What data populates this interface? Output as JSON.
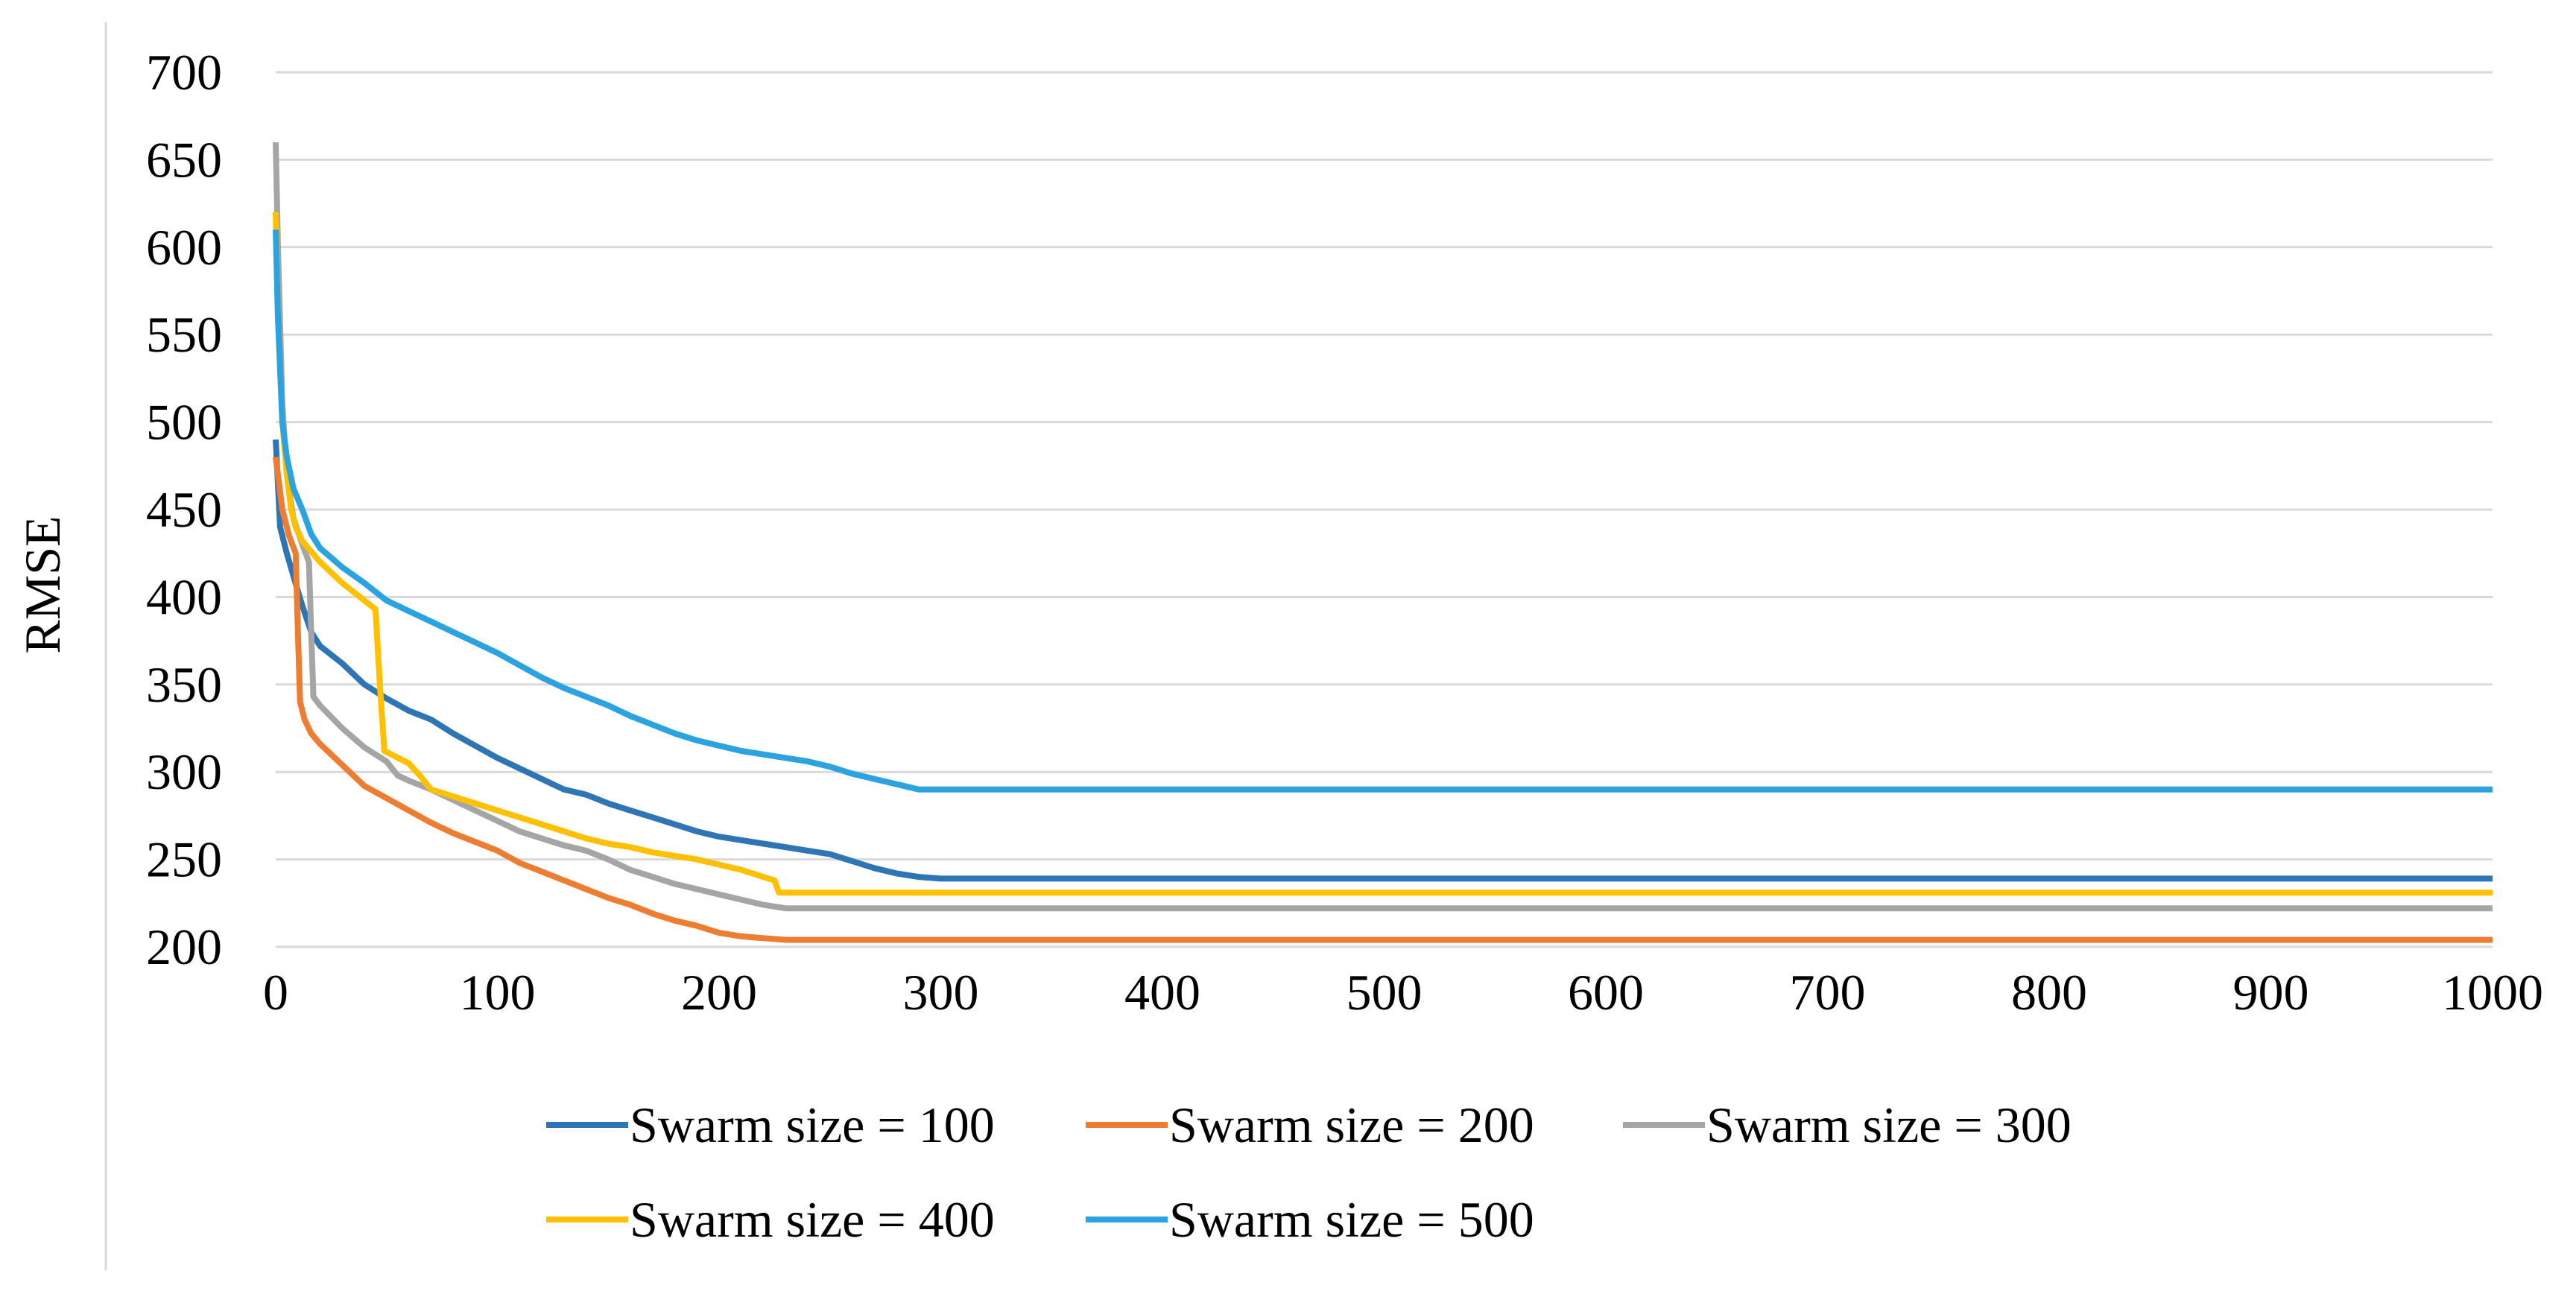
{
  "chart_data": {
    "type": "line",
    "title": "",
    "xlabel": "",
    "ylabel": "RMSE",
    "xlim": [
      0,
      1000
    ],
    "ylim": [
      200,
      700
    ],
    "x_ticks": [
      0,
      100,
      200,
      300,
      400,
      500,
      600,
      700,
      800,
      900,
      1000
    ],
    "y_ticks": [
      200,
      250,
      300,
      350,
      400,
      450,
      500,
      550,
      600,
      650,
      700
    ],
    "grid": true,
    "legend_position": "bottom",
    "series": [
      {
        "name": "Swarm size = 100",
        "color": "#2e75b6",
        "points": [
          [
            0,
            490
          ],
          [
            2,
            440
          ],
          [
            5,
            425
          ],
          [
            8,
            412
          ],
          [
            12,
            395
          ],
          [
            16,
            380
          ],
          [
            20,
            372
          ],
          [
            30,
            362
          ],
          [
            40,
            350
          ],
          [
            50,
            342
          ],
          [
            60,
            335
          ],
          [
            70,
            330
          ],
          [
            80,
            322
          ],
          [
            90,
            315
          ],
          [
            100,
            308
          ],
          [
            110,
            302
          ],
          [
            120,
            296
          ],
          [
            130,
            290
          ],
          [
            140,
            287
          ],
          [
            150,
            282
          ],
          [
            160,
            278
          ],
          [
            170,
            274
          ],
          [
            180,
            270
          ],
          [
            190,
            266
          ],
          [
            200,
            263
          ],
          [
            210,
            261
          ],
          [
            220,
            259
          ],
          [
            230,
            257
          ],
          [
            240,
            255
          ],
          [
            250,
            253
          ],
          [
            260,
            249
          ],
          [
            270,
            245
          ],
          [
            280,
            242
          ],
          [
            290,
            240
          ],
          [
            300,
            239
          ],
          [
            1000,
            239
          ]
        ]
      },
      {
        "name": "Swarm size = 200",
        "color": "#ed7d31",
        "points": [
          [
            0,
            480
          ],
          [
            3,
            450
          ],
          [
            6,
            435
          ],
          [
            9,
            425
          ],
          [
            10,
            380
          ],
          [
            11,
            340
          ],
          [
            13,
            330
          ],
          [
            16,
            322
          ],
          [
            20,
            316
          ],
          [
            30,
            304
          ],
          [
            40,
            292
          ],
          [
            50,
            285
          ],
          [
            60,
            278
          ],
          [
            70,
            271
          ],
          [
            80,
            265
          ],
          [
            90,
            260
          ],
          [
            100,
            255
          ],
          [
            110,
            248
          ],
          [
            120,
            243
          ],
          [
            130,
            238
          ],
          [
            140,
            233
          ],
          [
            150,
            228
          ],
          [
            160,
            224
          ],
          [
            170,
            219
          ],
          [
            180,
            215
          ],
          [
            190,
            212
          ],
          [
            200,
            208
          ],
          [
            210,
            206
          ],
          [
            220,
            205
          ],
          [
            230,
            204
          ],
          [
            1000,
            204
          ]
        ]
      },
      {
        "name": "Swarm size = 300",
        "color": "#a5a5a5",
        "points": [
          [
            0,
            660
          ],
          [
            1,
            600
          ],
          [
            3,
            510
          ],
          [
            5,
            470
          ],
          [
            8,
            445
          ],
          [
            12,
            430
          ],
          [
            15,
            420
          ],
          [
            16,
            380
          ],
          [
            17,
            343
          ],
          [
            20,
            338
          ],
          [
            30,
            325
          ],
          [
            40,
            314
          ],
          [
            50,
            306
          ],
          [
            55,
            298
          ],
          [
            60,
            295
          ],
          [
            70,
            290
          ],
          [
            80,
            284
          ],
          [
            90,
            278
          ],
          [
            100,
            272
          ],
          [
            110,
            266
          ],
          [
            120,
            262
          ],
          [
            130,
            258
          ],
          [
            140,
            255
          ],
          [
            150,
            250
          ],
          [
            160,
            244
          ],
          [
            170,
            240
          ],
          [
            180,
            236
          ],
          [
            190,
            233
          ],
          [
            200,
            230
          ],
          [
            210,
            227
          ],
          [
            220,
            224
          ],
          [
            230,
            222
          ],
          [
            1000,
            222
          ]
        ]
      },
      {
        "name": "Swarm size = 400",
        "color": "#ffc000",
        "points": [
          [
            0,
            620
          ],
          [
            1,
            560
          ],
          [
            3,
            500
          ],
          [
            5,
            470
          ],
          [
            7,
            450
          ],
          [
            9,
            440
          ],
          [
            12,
            432
          ],
          [
            20,
            420
          ],
          [
            30,
            408
          ],
          [
            40,
            398
          ],
          [
            45,
            393
          ],
          [
            47,
            350
          ],
          [
            49,
            312
          ],
          [
            60,
            305
          ],
          [
            65,
            298
          ],
          [
            70,
            290
          ],
          [
            80,
            286
          ],
          [
            90,
            282
          ],
          [
            100,
            278
          ],
          [
            110,
            274
          ],
          [
            120,
            270
          ],
          [
            130,
            266
          ],
          [
            140,
            262
          ],
          [
            150,
            259
          ],
          [
            160,
            257
          ],
          [
            170,
            254
          ],
          [
            180,
            252
          ],
          [
            190,
            250
          ],
          [
            200,
            247
          ],
          [
            210,
            244
          ],
          [
            220,
            240
          ],
          [
            225,
            238
          ],
          [
            227,
            231
          ],
          [
            1000,
            231
          ]
        ]
      },
      {
        "name": "Swarm size = 500",
        "color": "#2aa3e0",
        "points": [
          [
            0,
            610
          ],
          [
            1,
            560
          ],
          [
            3,
            500
          ],
          [
            5,
            480
          ],
          [
            8,
            462
          ],
          [
            12,
            450
          ],
          [
            16,
            436
          ],
          [
            20,
            428
          ],
          [
            30,
            417
          ],
          [
            40,
            408
          ],
          [
            50,
            398
          ],
          [
            60,
            392
          ],
          [
            70,
            386
          ],
          [
            80,
            380
          ],
          [
            90,
            374
          ],
          [
            100,
            368
          ],
          [
            110,
            361
          ],
          [
            120,
            354
          ],
          [
            130,
            348
          ],
          [
            140,
            343
          ],
          [
            150,
            338
          ],
          [
            160,
            332
          ],
          [
            170,
            327
          ],
          [
            180,
            322
          ],
          [
            190,
            318
          ],
          [
            200,
            315
          ],
          [
            210,
            312
          ],
          [
            220,
            310
          ],
          [
            230,
            308
          ],
          [
            240,
            306
          ],
          [
            250,
            303
          ],
          [
            260,
            299
          ],
          [
            270,
            296
          ],
          [
            280,
            293
          ],
          [
            290,
            290
          ],
          [
            300,
            290
          ],
          [
            1000,
            290
          ]
        ]
      }
    ]
  }
}
